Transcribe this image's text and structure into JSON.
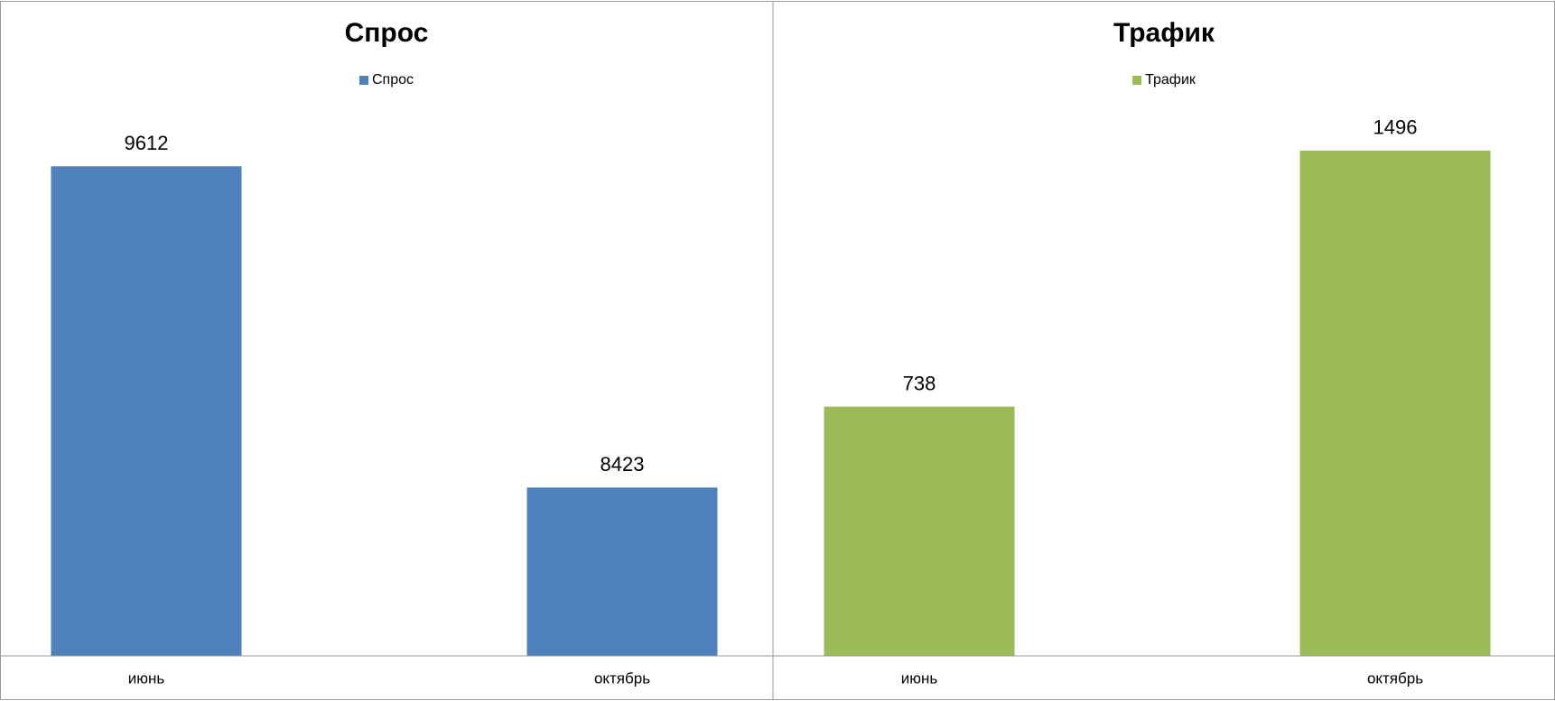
{
  "chart_data": [
    {
      "type": "bar",
      "title": "Спрос",
      "categories": [
        "июнь",
        "октябрь"
      ],
      "series": [
        {
          "name": "Спрос",
          "color": "#4f81bd",
          "values": [
            9612,
            8423
          ]
        }
      ],
      "ylim": [
        7800,
        9800
      ]
    },
    {
      "type": "bar",
      "title": "Трафик",
      "categories": [
        "июнь",
        "октябрь"
      ],
      "series": [
        {
          "name": "Трафик",
          "color": "#9bbb59",
          "values": [
            738,
            1496
          ]
        }
      ],
      "ylim": [
        0,
        1600
      ]
    }
  ]
}
